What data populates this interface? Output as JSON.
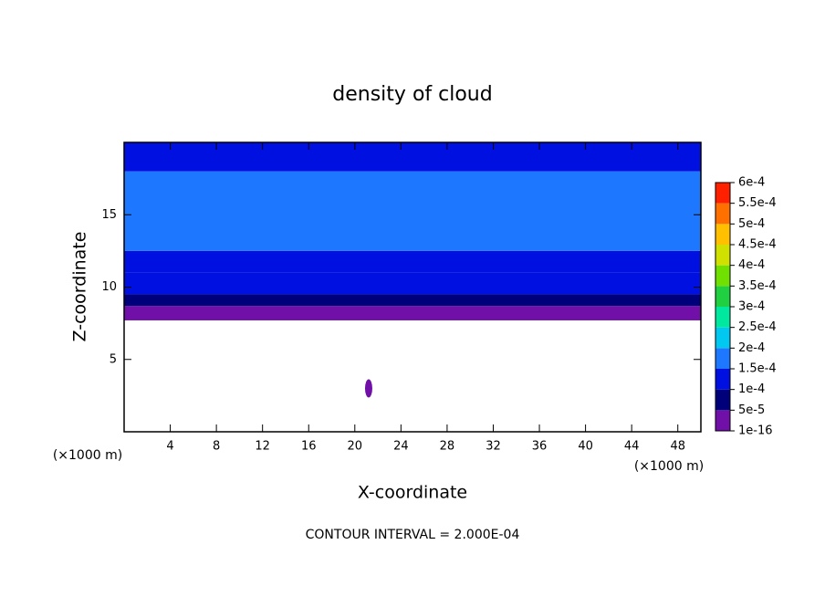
{
  "chart_data": {
    "type": "contour",
    "title": "density of cloud",
    "xlabel": "X-coordinate",
    "ylabel": "Z-coordinate",
    "x_unit": "(×1000 m)",
    "y_unit": "(×1000 m)",
    "footer": "CONTOUR INTERVAL = 2.000E-04",
    "xlim": [
      0,
      50
    ],
    "ylim": [
      0,
      20
    ],
    "xticks": [
      4,
      8,
      12,
      16,
      20,
      24,
      28,
      32,
      36,
      40,
      44,
      48
    ],
    "yticks": [
      5,
      10,
      15
    ],
    "y_edges": [
      7.7,
      8.7,
      9.5,
      11,
      12.5,
      18,
      20
    ],
    "values": [
      3e-05,
      7e-05,
      0.00012,
      0.00014,
      0.00017,
      0.000145
    ],
    "patch": {
      "x": 21.2,
      "y": 3,
      "value": 1e-05
    },
    "colorbar": {
      "ticks": [
        {
          "value": 1e-16,
          "label": "1e-16"
        },
        {
          "value": 5e-05,
          "label": "5e-5"
        },
        {
          "value": 0.0001,
          "label": "1e-4"
        },
        {
          "value": 0.00015,
          "label": "1.5e-4"
        },
        {
          "value": 0.0002,
          "label": "2e-4"
        },
        {
          "value": 0.00025,
          "label": "2.5e-4"
        },
        {
          "value": 0.0003,
          "label": "3e-4"
        },
        {
          "value": 0.00035,
          "label": "3.5e-4"
        },
        {
          "value": 0.0004,
          "label": "4e-4"
        },
        {
          "value": 0.00045,
          "label": "4.5e-4"
        },
        {
          "value": 0.0005,
          "label": "5e-4"
        },
        {
          "value": 0.00055,
          "label": "5.5e-4"
        },
        {
          "value": 0.0006,
          "label": "6e-4"
        }
      ],
      "colors": [
        "#7010a8",
        "#00007a",
        "#0010e0",
        "#1e78ff",
        "#00c8f0",
        "#00e8a0",
        "#20d040",
        "#70e000",
        "#d0e000",
        "#ffc000",
        "#ff7000",
        "#ff2000",
        "#ff9090"
      ]
    }
  }
}
